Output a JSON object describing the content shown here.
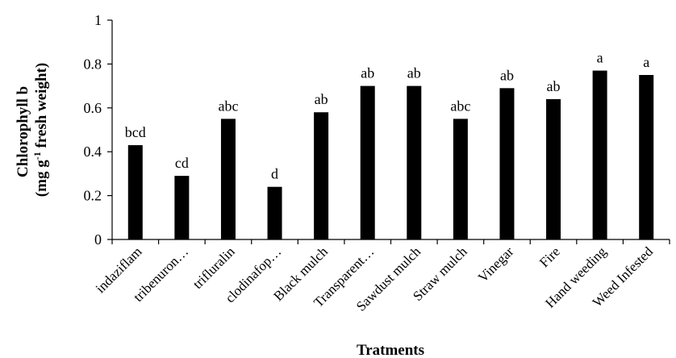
{
  "chart_data": {
    "type": "bar",
    "categories": [
      "indaziflam",
      "tribenuron…",
      "trifluralin",
      "clodinafop…",
      "Black mulch",
      "Transparent…",
      "Sawdust mulch",
      "Straw mulch",
      "Vinegar",
      "Fire",
      "Hand weeding",
      "Weed Infested"
    ],
    "values": [
      0.43,
      0.29,
      0.55,
      0.24,
      0.58,
      0.7,
      0.7,
      0.55,
      0.69,
      0.64,
      0.77,
      0.75
    ],
    "data_labels": [
      "bcd",
      "cd",
      "abc",
      "d",
      "ab",
      "ab",
      "ab",
      "abc",
      "ab",
      "ab",
      "a",
      "a"
    ],
    "xlabel": "Tratments",
    "ylabel_line1": "Chlorophyll b",
    "ylabel_line2_pre": "(mg g",
    "ylabel_line2_sup": "-1",
    "ylabel_line2_post": " fresh weight)",
    "ylim": [
      0,
      1
    ],
    "yticks": [
      "0",
      "0.2",
      "0.4",
      "0.6",
      "0.8",
      "1"
    ],
    "grid": false,
    "bar_color": "#000000"
  }
}
